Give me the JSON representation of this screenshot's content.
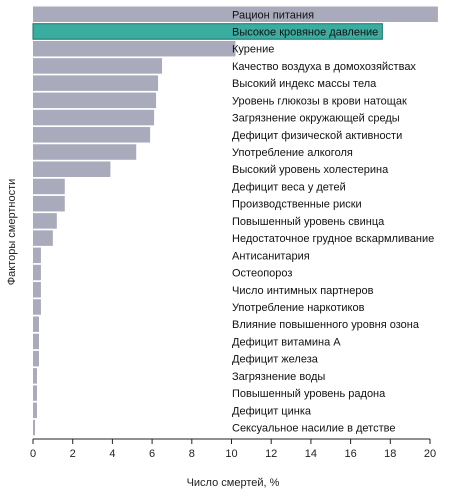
{
  "chart_data": {
    "type": "bar",
    "orientation": "horizontal",
    "title": "",
    "xlabel": "Число смертей, %",
    "ylabel": "Факторы смертности",
    "xlim": [
      0,
      20
    ],
    "xticks": [
      "0",
      "2",
      "4",
      "6",
      "8",
      "10",
      "12",
      "14",
      "16",
      "18",
      "20"
    ],
    "grid": false,
    "legend": "none",
    "colors": {
      "default_bar": "#a9aabb",
      "highlight_bar": "#3aada0",
      "highlight_edge": "#1e6e66",
      "axis": "#222222"
    },
    "categories": [
      "Рацион питания",
      "Высокое кровяное давление",
      "Курение",
      "Качество воздуха в домохозяйствах",
      "Высокий индекс массы тела",
      "Уровень глюкозы в крови натощак",
      "Загрязнение окружающей среды",
      "Дефицит физической активности",
      "Употребление алкоголя",
      "Высокий уровень холестерина",
      "Дефицит веса у детей",
      "Производственные риски",
      "Повышенный уровень свинца",
      "Недостаточное грудное вскармливание",
      "Антисанитария",
      "Остеопороз",
      "Число интимных партнеров",
      "Употребление наркотиков",
      "Влияние повышенного уровня озона",
      "Дефицит витамина А",
      "Дефицит железа",
      "Загрязнение воды",
      "Повышенный уровень радона",
      "Дефицит цинка",
      "Сексуальное насилие в детстве"
    ],
    "values": [
      20.4,
      17.6,
      10.2,
      6.5,
      6.3,
      6.2,
      6.1,
      5.9,
      5.2,
      3.9,
      1.6,
      1.6,
      1.2,
      1.0,
      0.4,
      0.4,
      0.4,
      0.4,
      0.3,
      0.3,
      0.3,
      0.2,
      0.2,
      0.2,
      0.1
    ],
    "highlight_index": 1
  }
}
